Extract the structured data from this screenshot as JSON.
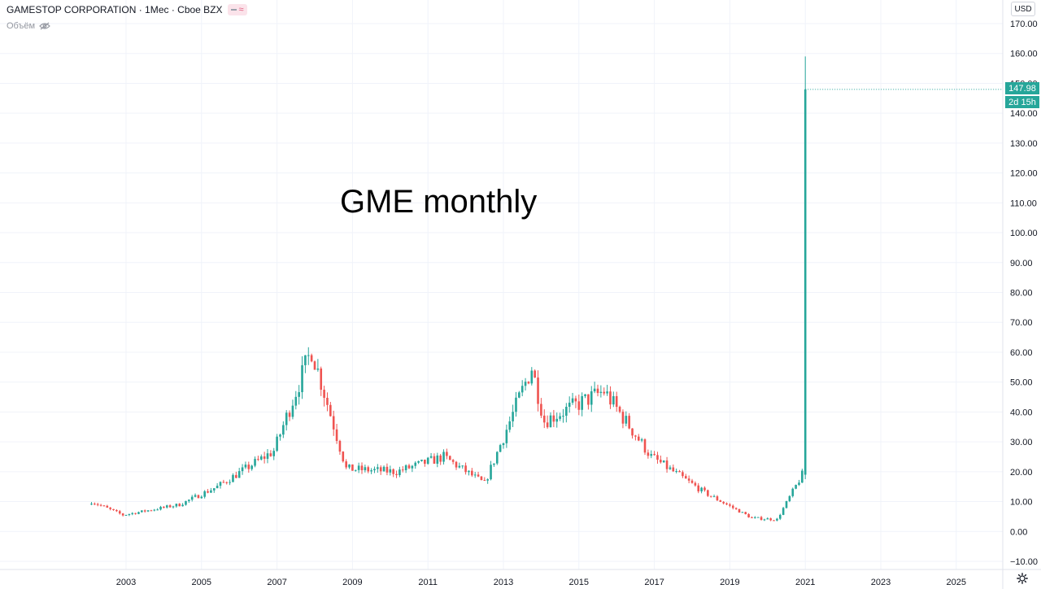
{
  "header": {
    "title": "GAMESTOP CORPORATION · 1Мес · Cboe BZX",
    "volume_label": "Объём"
  },
  "currency": "USD",
  "annotation": "GME monthly",
  "last_price": {
    "value": "147.98",
    "countdown": "2d 15h"
  },
  "colors": {
    "up": "#26a69a",
    "down": "#ef5350",
    "grid": "#f0f3fa",
    "axis_text": "#131722",
    "tag": "#26a69a"
  },
  "icons": {
    "eye": "eye-off-icon",
    "settings": "gear-icon",
    "badge": "wave-icon"
  },
  "chart_data": {
    "type": "candlestick",
    "title": "",
    "ylim": [
      -10,
      170
    ],
    "y_ticks": [
      "170.00",
      "160.00",
      "150.00",
      "140.00",
      "130.00",
      "120.00",
      "110.00",
      "100.00",
      "90.00",
      "80.00",
      "70.00",
      "60.00",
      "50.00",
      "40.00",
      "30.00",
      "20.00",
      "10.00",
      "0.00",
      "−10.00"
    ],
    "x_ticks": [
      "2003",
      "2005",
      "2007",
      "2009",
      "2011",
      "2013",
      "2015",
      "2017",
      "2019",
      "2021",
      "2023",
      "2025"
    ],
    "grid": true,
    "key_points": [
      {
        "x": "2002-02",
        "close": 10
      },
      {
        "x": "2002-12",
        "close": 5.5
      },
      {
        "x": "2004-06",
        "close": 9
      },
      {
        "x": "2005-06",
        "close": 15
      },
      {
        "x": "2006-12",
        "close": 27
      },
      {
        "x": "2007-12",
        "close": 61
      },
      {
        "x": "2008-11",
        "close": 21
      },
      {
        "x": "2010-03",
        "close": 20
      },
      {
        "x": "2011-06",
        "close": 25
      },
      {
        "x": "2012-07",
        "close": 16
      },
      {
        "x": "2013-10",
        "close": 55
      },
      {
        "x": "2014-02",
        "close": 37
      },
      {
        "x": "2015-09",
        "close": 47
      },
      {
        "x": "2016-12",
        "close": 25
      },
      {
        "x": "2018-05",
        "close": 13
      },
      {
        "x": "2019-08",
        "close": 4.5
      },
      {
        "x": "2020-04",
        "close": 4
      },
      {
        "x": "2020-12",
        "close": 19
      },
      {
        "x": "2021-01",
        "open": 19,
        "high": 159,
        "low": 17.5,
        "close": 147.98
      }
    ]
  }
}
